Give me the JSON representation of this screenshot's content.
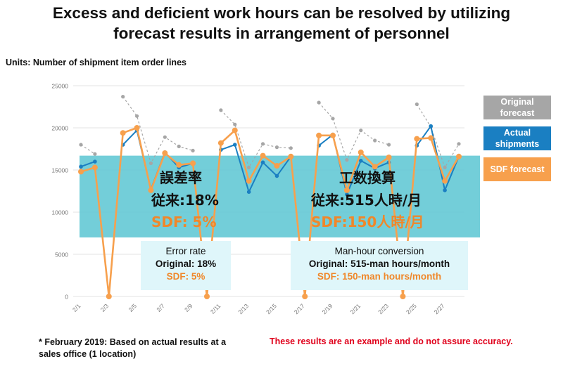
{
  "title_line1": "Excess and deficient work hours can be resolved by utilizing",
  "title_line2": "forecast results in arrangement of personnel",
  "units": "Units: Number of shipment item order lines",
  "legend": {
    "original": "Original forecast",
    "actual": "Actual shipments",
    "sdf": "SDF forecast"
  },
  "colors": {
    "original": "#a6a6a6",
    "actual": "#1a7fc2",
    "sdf": "#f7a04d",
    "band": "#60c7d4",
    "highlight": "#f0872a",
    "disclaimer": "#e0001b"
  },
  "error_rate_jp": {
    "heading": "誤差率",
    "original": "従来:18%",
    "sdf": "SDF: 5%"
  },
  "error_rate_en": {
    "heading": "Error rate",
    "original": "Original: 18%",
    "sdf": "SDF: 5%"
  },
  "manhour_jp": {
    "heading": "工数換算",
    "original": "従来:515人時/月",
    "sdf": "SDF:150人時/月"
  },
  "manhour_en": {
    "heading": "Man-hour conversion",
    "original": "Original: 515-man hours/month",
    "sdf": "SDF: 150-man hours/month"
  },
  "note": "* February 2019: Based on actual results at a sales office (1 location)",
  "disclaimer": "These results are an example and do not assure accuracy.",
  "chart_data": {
    "type": "line",
    "x": [
      "2/1",
      "2/2",
      "2/3",
      "2/4",
      "2/5",
      "2/6",
      "2/7",
      "2/8",
      "2/9",
      "2/10",
      "2/11",
      "2/12",
      "2/13",
      "2/14",
      "2/15",
      "2/16",
      "2/17",
      "2/18",
      "2/19",
      "2/20",
      "2/21",
      "2/22",
      "2/23",
      "2/24",
      "2/25",
      "2/26",
      "2/27",
      "2/28"
    ],
    "x_tick_labels": [
      "2/1",
      "2/3",
      "2/5",
      "2/7",
      "2/9",
      "2/11",
      "2/13",
      "2/15",
      "2/17",
      "2/19",
      "2/21",
      "2/23",
      "2/25",
      "2/27"
    ],
    "ylim": [
      0,
      25000
    ],
    "y_ticks": [
      0,
      5000,
      10000,
      15000,
      20000,
      25000
    ],
    "band": [
      7000,
      16700
    ],
    "series": [
      {
        "name": "Original forecast",
        "values": [
          18000,
          16900,
          null,
          23700,
          21400,
          15800,
          18900,
          17800,
          17300,
          null,
          22100,
          20400,
          15300,
          18100,
          17700,
          17600,
          null,
          23000,
          21100,
          16200,
          19700,
          18500,
          18000,
          null,
          22800,
          20100,
          15300,
          18100
        ]
      },
      {
        "name": "Actual shipments",
        "values": [
          15400,
          16000,
          null,
          18000,
          19700,
          12700,
          17100,
          15300,
          15800,
          null,
          17400,
          18000,
          12400,
          15900,
          14300,
          16600,
          null,
          17900,
          19200,
          12100,
          16100,
          15200,
          15900,
          null,
          17900,
          20200,
          12600,
          16600
        ]
      },
      {
        "name": "SDF forecast",
        "values": [
          14800,
          15300,
          0,
          19400,
          20000,
          12600,
          17000,
          15600,
          15800,
          0,
          18200,
          19700,
          13700,
          16700,
          15500,
          16600,
          0,
          19100,
          19100,
          12600,
          17100,
          15400,
          16500,
          0,
          18700,
          18800,
          13700,
          16600
        ]
      }
    ]
  }
}
